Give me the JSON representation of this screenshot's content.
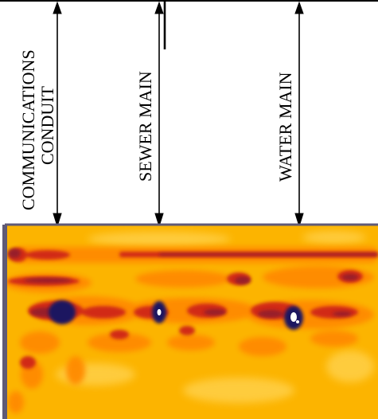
{
  "labels": {
    "conduit_line1": "COMMUNICATIONS",
    "conduit_line2": "CONDUIT",
    "sewer": "SEWER MAIN",
    "water": "WATER MAIN"
  },
  "colors": {
    "background": "#ffffff",
    "frame": "#5f5a76",
    "radar_base": "#fcb400",
    "radar_light": "#ffd24d",
    "band_orange": "#ff8a00",
    "band_red": "#d12a14",
    "band_maroon": "#8e1a2e",
    "target_navy": "#1d1560",
    "arrow": "#000000"
  },
  "icons": [
    "arrow-up-icon",
    "arrow-down-icon"
  ]
}
